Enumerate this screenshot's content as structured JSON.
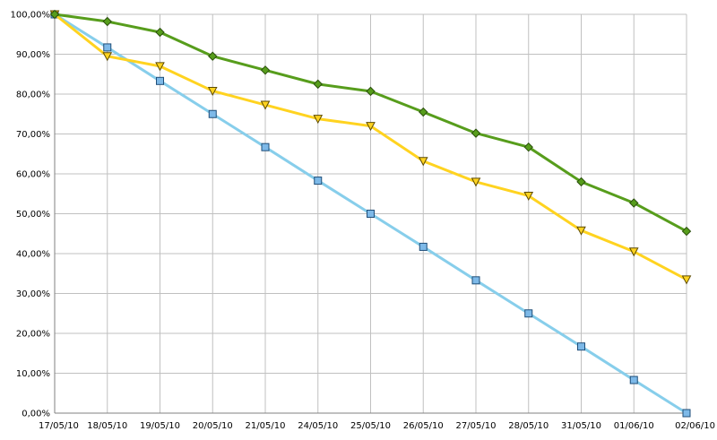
{
  "chart_data": {
    "type": "line",
    "categories": [
      "17/05/10",
      "18/05/10",
      "19/05/10",
      "20/05/10",
      "21/05/10",
      "24/05/10",
      "25/05/10",
      "26/05/10",
      "27/05/10",
      "28/05/10",
      "31/05/10",
      "01/06/10",
      "02/06/10"
    ],
    "ylim": [
      0,
      100
    ],
    "yticks": [
      0,
      10,
      20,
      30,
      40,
      50,
      60,
      70,
      80,
      90,
      100
    ],
    "ytick_labels": [
      "0,00%",
      "10,00%",
      "20,00%",
      "30,00%",
      "40,00%",
      "50,00%",
      "60,00%",
      "70,00%",
      "80,00%",
      "90,00%",
      "100,00%"
    ],
    "grid": true,
    "legend": "none",
    "series": [
      {
        "color": "#87CEEB",
        "marker": "square",
        "marker_fill": "#7db9e8",
        "values": [
          100,
          91.7,
          83.3,
          75.0,
          66.7,
          58.3,
          50.0,
          41.7,
          33.3,
          25.0,
          16.7,
          8.3,
          0
        ]
      },
      {
        "color": "#FFD320",
        "marker": "triangle-down",
        "marker_fill": "#FFD320",
        "values": [
          100,
          89.5,
          87.0,
          80.8,
          77.3,
          73.8,
          72.0,
          63.2,
          58.0,
          54.5,
          45.8,
          40.5,
          33.5
        ]
      },
      {
        "color": "#579D1C",
        "marker": "diamond",
        "marker_fill": "#579D1C",
        "values": [
          100,
          98.2,
          95.5,
          89.5,
          86.0,
          82.5,
          80.7,
          75.5,
          70.2,
          66.7,
          58.0,
          52.7,
          45.6
        ]
      }
    ]
  }
}
